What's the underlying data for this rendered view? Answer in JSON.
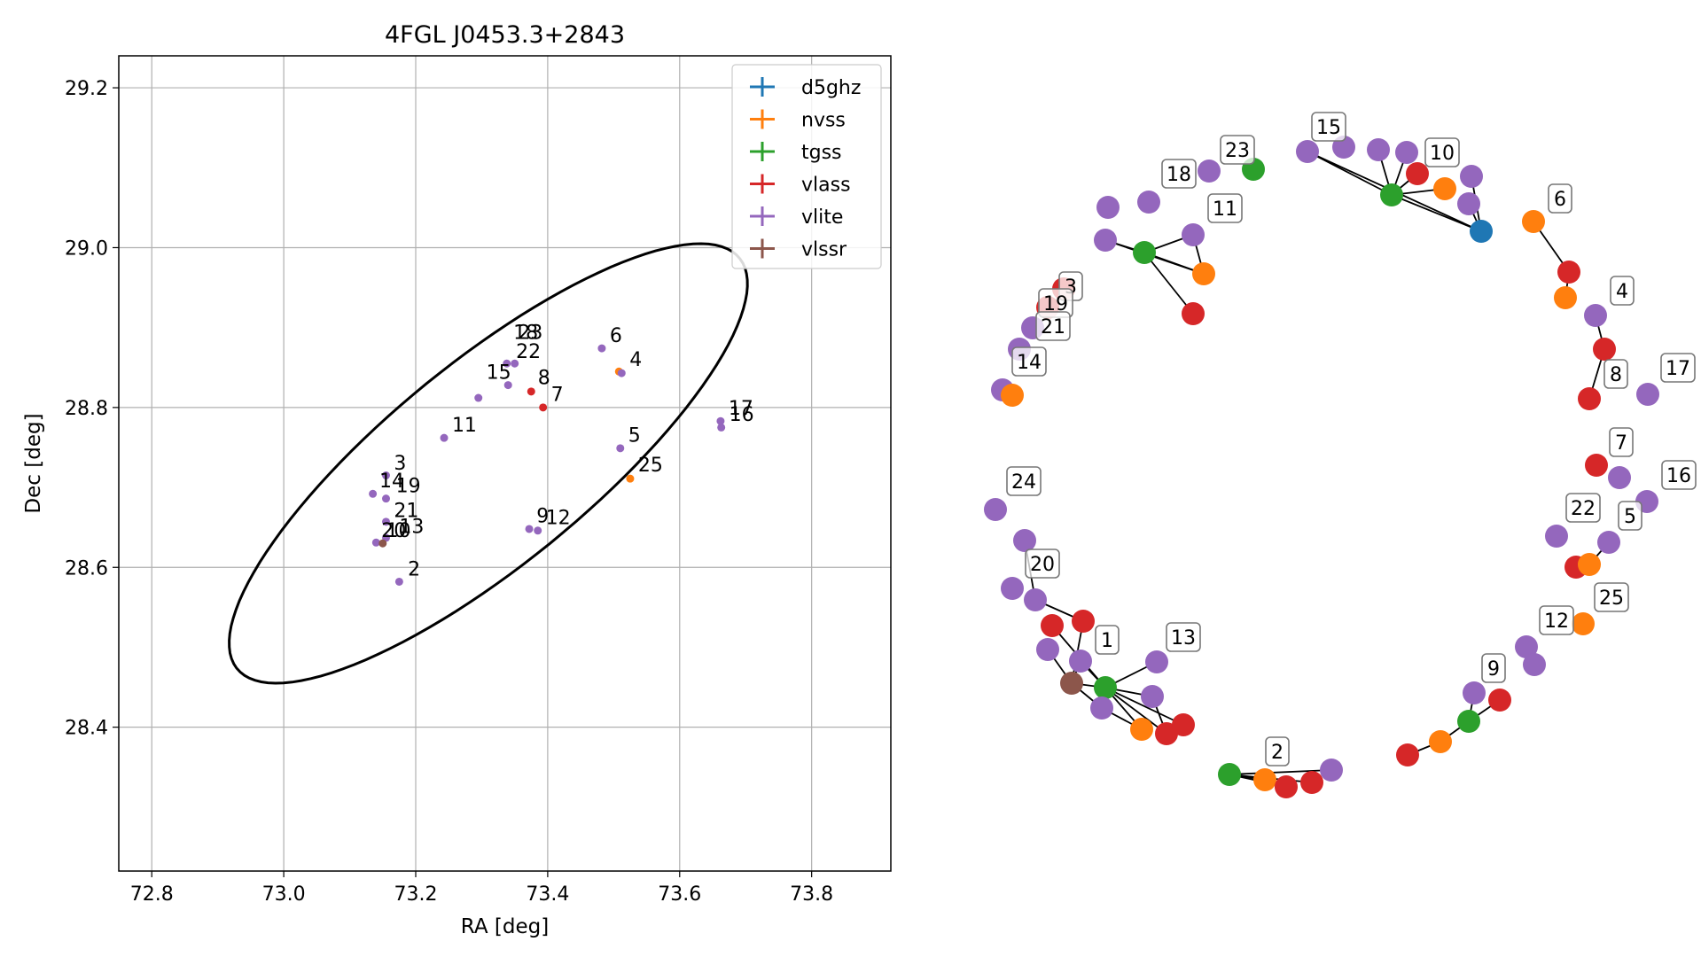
{
  "colors": {
    "d5ghz": "#1f77b4",
    "nvss": "#ff7f0e",
    "tgss": "#2ca02c",
    "vlass": "#d62728",
    "vlite": "#9467bd",
    "vlssr": "#8c564b"
  },
  "chart_data": [
    {
      "type": "scatter",
      "title": "4FGL J0453.3+2843",
      "xlabel": "RA [deg]",
      "ylabel": "Dec [deg]",
      "xlim": [
        72.75,
        73.92
      ],
      "ylim": [
        28.22,
        29.24
      ],
      "xticks": [
        "72.8",
        "73.0",
        "73.2",
        "73.4",
        "73.6",
        "73.8"
      ],
      "yticks": [
        "28.4",
        "28.6",
        "28.8",
        "29.0",
        "29.2"
      ],
      "grid": true,
      "legend_position": "top-right",
      "legend": [
        "d5ghz",
        "nvss",
        "tgss",
        "vlass",
        "vlite",
        "vlssr"
      ],
      "ellipse": {
        "center": [
          73.31,
          28.73
        ],
        "semi_major": 0.46,
        "semi_minor": 0.135,
        "angle_deg": 33
      },
      "points": [
        {
          "survey": "vlite",
          "ra": 73.135,
          "dec": 28.692
        },
        {
          "survey": "vlite",
          "ra": 73.155,
          "dec": 28.715
        },
        {
          "survey": "vlite",
          "ra": 73.155,
          "dec": 28.686
        },
        {
          "survey": "vlite",
          "ra": 73.155,
          "dec": 28.657
        },
        {
          "survey": "vlite",
          "ra": 73.155,
          "dec": 28.637
        },
        {
          "survey": "vlite",
          "ra": 73.14,
          "dec": 28.631
        },
        {
          "survey": "vlssr",
          "ra": 73.15,
          "dec": 28.63
        },
        {
          "survey": "vlite",
          "ra": 73.175,
          "dec": 28.582
        },
        {
          "survey": "vlite",
          "ra": 73.243,
          "dec": 28.762
        },
        {
          "survey": "vlite",
          "ra": 73.295,
          "dec": 28.812
        },
        {
          "survey": "vlite",
          "ra": 73.34,
          "dec": 28.828
        },
        {
          "survey": "vlite",
          "ra": 73.338,
          "dec": 28.855
        },
        {
          "survey": "vlite",
          "ra": 73.35,
          "dec": 28.855
        },
        {
          "survey": "vlass",
          "ra": 73.375,
          "dec": 28.82
        },
        {
          "survey": "vlass",
          "ra": 73.393,
          "dec": 28.8
        },
        {
          "survey": "vlite",
          "ra": 73.372,
          "dec": 28.648
        },
        {
          "survey": "vlite",
          "ra": 73.385,
          "dec": 28.646
        },
        {
          "survey": "vlite",
          "ra": 73.482,
          "dec": 28.874
        },
        {
          "survey": "nvss",
          "ra": 73.508,
          "dec": 28.845
        },
        {
          "survey": "vlite",
          "ra": 73.512,
          "dec": 28.843
        },
        {
          "survey": "vlite",
          "ra": 73.51,
          "dec": 28.749
        },
        {
          "survey": "nvss",
          "ra": 73.525,
          "dec": 28.711
        },
        {
          "survey": "vlite",
          "ra": 73.662,
          "dec": 28.783
        },
        {
          "survey": "vlite",
          "ra": 73.663,
          "dec": 28.775
        }
      ],
      "labels": [
        {
          "text": "3",
          "ra": 73.167,
          "dec": 28.722
        },
        {
          "text": "14",
          "ra": 73.145,
          "dec": 28.7
        },
        {
          "text": "19",
          "ra": 73.17,
          "dec": 28.694
        },
        {
          "text": "21",
          "ra": 73.167,
          "dec": 28.663
        },
        {
          "text": "13",
          "ra": 73.175,
          "dec": 28.643
        },
        {
          "text": "20",
          "ra": 73.148,
          "dec": 28.638
        },
        {
          "text": "10",
          "ra": 73.155,
          "dec": 28.638
        },
        {
          "text": "2",
          "ra": 73.188,
          "dec": 28.59
        },
        {
          "text": "11",
          "ra": 73.255,
          "dec": 28.77
        },
        {
          "text": "15",
          "ra": 73.307,
          "dec": 28.836
        },
        {
          "text": "22",
          "ra": 73.352,
          "dec": 28.862
        },
        {
          "text": "8",
          "ra": 73.385,
          "dec": 28.829
        },
        {
          "text": "7",
          "ra": 73.405,
          "dec": 28.808
        },
        {
          "text": "18",
          "ra": 73.348,
          "dec": 28.886
        },
        {
          "text": "23",
          "ra": 73.355,
          "dec": 28.886
        },
        {
          "text": "9",
          "ra": 73.383,
          "dec": 28.656
        },
        {
          "text": "12",
          "ra": 73.397,
          "dec": 28.654
        },
        {
          "text": "6",
          "ra": 73.494,
          "dec": 28.882
        },
        {
          "text": "4",
          "ra": 73.524,
          "dec": 28.852
        },
        {
          "text": "5",
          "ra": 73.522,
          "dec": 28.757
        },
        {
          "text": "25",
          "ra": 73.537,
          "dec": 28.72
        },
        {
          "text": "17",
          "ra": 73.674,
          "dec": 28.791
        },
        {
          "text": "16",
          "ra": 73.675,
          "dec": 28.783
        }
      ]
    },
    {
      "type": "network",
      "nodes": [
        {
          "id": "n1",
          "survey": "vlite",
          "label": "23"
        },
        {
          "id": "n2",
          "survey": "tgss",
          "label": ""
        },
        {
          "id": "n3",
          "survey": "vlite",
          "label": "15"
        },
        {
          "id": "n4",
          "survey": "vlite",
          "label": ""
        },
        {
          "id": "n5",
          "survey": "vlite",
          "label": ""
        },
        {
          "id": "n6",
          "survey": "vlite",
          "label": ""
        },
        {
          "id": "n7",
          "survey": "tgss",
          "label": ""
        },
        {
          "id": "n8",
          "survey": "vlass",
          "label": "10"
        },
        {
          "id": "n9",
          "survey": "nvss",
          "label": ""
        },
        {
          "id": "n10",
          "survey": "vlite",
          "label": ""
        },
        {
          "id": "n11",
          "survey": "vlite",
          "label": ""
        },
        {
          "id": "n12",
          "survey": "d5ghz",
          "label": ""
        },
        {
          "id": "n13",
          "survey": "nvss",
          "label": "6"
        },
        {
          "id": "n14",
          "survey": "vlite",
          "label": "18"
        },
        {
          "id": "n15",
          "survey": "vlite",
          "label": ""
        },
        {
          "id": "n16",
          "survey": "vlite",
          "label": ""
        },
        {
          "id": "n17",
          "survey": "vlite",
          "label": "11"
        },
        {
          "id": "n18",
          "survey": "tgss",
          "label": ""
        },
        {
          "id": "n19",
          "survey": "nvss",
          "label": ""
        },
        {
          "id": "n20",
          "survey": "vlass",
          "label": ""
        },
        {
          "id": "n21",
          "survey": "vlass",
          "label": ""
        },
        {
          "id": "n22",
          "survey": "nvss",
          "label": ""
        },
        {
          "id": "n23",
          "survey": "vlite",
          "label": "4"
        },
        {
          "id": "n24",
          "survey": "vlass",
          "label": ""
        },
        {
          "id": "n25",
          "survey": "vlass",
          "label": "8"
        },
        {
          "id": "n26",
          "survey": "vlite",
          "label": "17"
        },
        {
          "id": "n27",
          "survey": "vlass",
          "label": ""
        },
        {
          "id": "n28",
          "survey": "vlass",
          "label": "3"
        },
        {
          "id": "n29",
          "survey": "vlite",
          "label": "19"
        },
        {
          "id": "n30",
          "survey": "vlite",
          "label": "21"
        },
        {
          "id": "n31",
          "survey": "vlite",
          "label": "14"
        },
        {
          "id": "n32",
          "survey": "nvss",
          "label": ""
        },
        {
          "id": "n33",
          "survey": "vlass",
          "label": "7"
        },
        {
          "id": "n34",
          "survey": "vlite",
          "label": ""
        },
        {
          "id": "n35",
          "survey": "vlite",
          "label": "16"
        },
        {
          "id": "n36",
          "survey": "vlite",
          "label": "22"
        },
        {
          "id": "n37",
          "survey": "vlite",
          "label": "5"
        },
        {
          "id": "n38",
          "survey": "vlass",
          "label": ""
        },
        {
          "id": "n39",
          "survey": "nvss",
          "label": ""
        },
        {
          "id": "n40",
          "survey": "vlite",
          "label": "24"
        },
        {
          "id": "n41",
          "survey": "vlite",
          "label": ""
        },
        {
          "id": "n42",
          "survey": "vlite",
          "label": "20"
        },
        {
          "id": "n43",
          "survey": "vlite",
          "label": ""
        },
        {
          "id": "n44",
          "survey": "nvss",
          "label": "25"
        },
        {
          "id": "n45",
          "survey": "vlass",
          "label": ""
        },
        {
          "id": "n46",
          "survey": "vlass",
          "label": ""
        },
        {
          "id": "n47",
          "survey": "vlite",
          "label": ""
        },
        {
          "id": "n48",
          "survey": "vlite",
          "label": "1"
        },
        {
          "id": "n49",
          "survey": "vlite",
          "label": "13"
        },
        {
          "id": "n50",
          "survey": "vlssr",
          "label": ""
        },
        {
          "id": "n51",
          "survey": "tgss",
          "label": ""
        },
        {
          "id": "n52",
          "survey": "vlite",
          "label": ""
        },
        {
          "id": "n53",
          "survey": "vlite",
          "label": ""
        },
        {
          "id": "n54",
          "survey": "nvss",
          "label": ""
        },
        {
          "id": "n55",
          "survey": "vlass",
          "label": ""
        },
        {
          "id": "n56",
          "survey": "vlass",
          "label": ""
        },
        {
          "id": "n57",
          "survey": "vlite",
          "label": "12"
        },
        {
          "id": "n58",
          "survey": "vlite",
          "label": ""
        },
        {
          "id": "n59",
          "survey": "vlite",
          "label": "9"
        },
        {
          "id": "n60",
          "survey": "vlass",
          "label": ""
        },
        {
          "id": "n61",
          "survey": "tgss",
          "label": ""
        },
        {
          "id": "n62",
          "survey": "nvss",
          "label": ""
        },
        {
          "id": "n63",
          "survey": "vlass",
          "label": ""
        },
        {
          "id": "n64",
          "survey": "tgss",
          "label": ""
        },
        {
          "id": "n65",
          "survey": "nvss",
          "label": "2"
        },
        {
          "id": "n66",
          "survey": "vlass",
          "label": ""
        },
        {
          "id": "n67",
          "survey": "vlass",
          "label": ""
        },
        {
          "id": "n68",
          "survey": "vlite",
          "label": ""
        }
      ],
      "edges": [
        [
          "n3",
          "n7"
        ],
        [
          "n5",
          "n7"
        ],
        [
          "n6",
          "n7"
        ],
        [
          "n7",
          "n8"
        ],
        [
          "n7",
          "n9"
        ],
        [
          "n7",
          "n12"
        ],
        [
          "n10",
          "n12"
        ],
        [
          "n11",
          "n12"
        ],
        [
          "n3",
          "n12"
        ],
        [
          "n13",
          "n20"
        ],
        [
          "n20",
          "n22"
        ],
        [
          "n17",
          "n18"
        ],
        [
          "n16",
          "n18"
        ],
        [
          "n18",
          "n19"
        ],
        [
          "n18",
          "n21"
        ],
        [
          "n17",
          "n19"
        ],
        [
          "n16",
          "n19"
        ],
        [
          "n23",
          "n24"
        ],
        [
          "n24",
          "n25"
        ],
        [
          "n37",
          "n39"
        ],
        [
          "n38",
          "n39"
        ],
        [
          "n41",
          "n43"
        ],
        [
          "n43",
          "n46"
        ],
        [
          "n46",
          "n50"
        ],
        [
          "n50",
          "n47"
        ],
        [
          "n50",
          "n48"
        ],
        [
          "n50",
          "n51"
        ],
        [
          "n51",
          "n45"
        ],
        [
          "n51",
          "n48"
        ],
        [
          "n51",
          "n49"
        ],
        [
          "n51",
          "n53"
        ],
        [
          "n51",
          "n54"
        ],
        [
          "n51",
          "n55"
        ],
        [
          "n51",
          "n56"
        ],
        [
          "n50",
          "n52"
        ],
        [
          "n52",
          "n54"
        ],
        [
          "n53",
          "n55"
        ],
        [
          "n57",
          "n58"
        ],
        [
          "n59",
          "n61"
        ],
        [
          "n60",
          "n61"
        ],
        [
          "n61",
          "n62"
        ],
        [
          "n62",
          "n63"
        ],
        [
          "n64",
          "n65"
        ],
        [
          "n64",
          "n66"
        ],
        [
          "n64",
          "n67"
        ],
        [
          "n64",
          "n68"
        ]
      ]
    }
  ]
}
